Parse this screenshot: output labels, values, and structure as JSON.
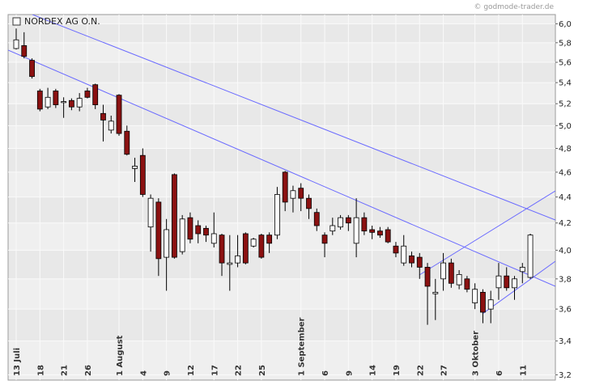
{
  "chart_data": {
    "type": "candlestick",
    "title": "NORDEX AG O.N.",
    "source": "© godmode-trader.de",
    "categories": [
      "13 Juli",
      null,
      null,
      "18",
      null,
      null,
      "21",
      null,
      null,
      "26",
      null,
      null,
      null,
      "1 August",
      null,
      null,
      "4",
      null,
      null,
      "9",
      null,
      null,
      "12",
      null,
      null,
      "17",
      null,
      null,
      "22",
      null,
      null,
      "25",
      null,
      null,
      null,
      null,
      "1 September",
      null,
      null,
      "6",
      null,
      null,
      "9",
      null,
      null,
      "14",
      null,
      null,
      "19",
      null,
      null,
      "22",
      null,
      null,
      "27",
      null,
      null,
      null,
      "3 Oktober",
      null,
      null,
      "6",
      null,
      null,
      "11",
      null
    ],
    "open": [
      5.74,
      5.77,
      5.62,
      5.32,
      5.17,
      5.32,
      5.21,
      5.23,
      5.17,
      5.32,
      5.38,
      5.11,
      4.96,
      5.28,
      4.95,
      4.63,
      4.74,
      4.17,
      4.36,
      3.95,
      4.58,
      3.99,
      4.24,
      4.18,
      4.16,
      4.05,
      4.11,
      3.9,
      3.91,
      4.12,
      4.03,
      4.11,
      4.11,
      4.11,
      4.6,
      4.39,
      4.47,
      4.39,
      4.28,
      4.11,
      4.14,
      4.17,
      4.24,
      4.05,
      4.24,
      4.15,
      4.14,
      4.15,
      4.03,
      3.91,
      3.96,
      3.95,
      3.88,
      3.7,
      3.8,
      3.91,
      3.76,
      3.8,
      3.64,
      3.71,
      3.6,
      3.74,
      3.82,
      3.74,
      3.85,
      3.81
    ],
    "high": [
      5.95,
      5.91,
      5.64,
      5.34,
      5.35,
      5.34,
      5.26,
      5.25,
      5.3,
      5.35,
      5.39,
      5.19,
      5.09,
      5.29,
      5.0,
      4.72,
      4.8,
      4.42,
      4.39,
      4.23,
      4.59,
      4.26,
      4.28,
      4.22,
      4.18,
      4.28,
      4.12,
      4.11,
      4.11,
      4.13,
      4.09,
      4.12,
      4.13,
      4.48,
      4.61,
      4.49,
      4.51,
      4.42,
      4.31,
      4.13,
      4.24,
      4.26,
      4.26,
      4.39,
      4.28,
      4.18,
      4.17,
      4.17,
      4.06,
      4.11,
      3.99,
      3.98,
      3.91,
      3.8,
      3.98,
      3.94,
      3.86,
      3.82,
      3.77,
      3.73,
      3.72,
      3.91,
      3.88,
      3.82,
      3.91,
      4.12
    ],
    "low": [
      5.73,
      5.64,
      5.44,
      5.13,
      5.15,
      5.16,
      5.07,
      5.14,
      5.13,
      5.25,
      5.15,
      4.86,
      4.93,
      4.91,
      4.74,
      4.52,
      4.4,
      3.99,
      3.82,
      3.72,
      3.94,
      3.97,
      4.05,
      4.05,
      4.06,
      4.02,
      3.82,
      3.72,
      3.88,
      3.9,
      4.02,
      3.94,
      3.98,
      4.08,
      4.29,
      4.28,
      4.29,
      4.23,
      4.14,
      3.95,
      4.11,
      4.15,
      4.14,
      3.95,
      4.11,
      4.08,
      4.09,
      4.05,
      3.95,
      3.89,
      3.88,
      3.8,
      3.5,
      3.53,
      3.72,
      3.74,
      3.73,
      3.71,
      3.6,
      3.51,
      3.51,
      3.66,
      3.72,
      3.66,
      3.77,
      3.8
    ],
    "close": [
      5.83,
      5.66,
      5.46,
      5.15,
      5.26,
      5.19,
      5.22,
      5.17,
      5.25,
      5.26,
      5.19,
      5.05,
      5.04,
      4.93,
      4.75,
      4.65,
      4.42,
      4.39,
      3.94,
      4.15,
      3.95,
      4.23,
      4.08,
      4.12,
      4.11,
      4.12,
      3.91,
      3.91,
      3.96,
      3.91,
      4.08,
      3.95,
      4.05,
      4.42,
      4.36,
      4.45,
      4.39,
      4.31,
      4.18,
      4.05,
      4.18,
      4.24,
      4.2,
      4.24,
      4.14,
      4.13,
      4.11,
      4.06,
      3.98,
      4.03,
      3.91,
      3.88,
      3.75,
      3.71,
      3.91,
      3.77,
      3.83,
      3.73,
      3.73,
      3.58,
      3.66,
      3.82,
      3.74,
      3.8,
      3.88,
      4.11
    ],
    "up_color": "#ffffff",
    "down_color": "#8b1111",
    "wick_color": "#000000",
    "ylim": [
      3.17,
      6.1
    ],
    "log_scale": true,
    "grid": true,
    "yticks": [
      {
        "value": 3.2,
        "label": "3,2"
      },
      {
        "value": 3.4,
        "label": "3,4"
      },
      {
        "value": 3.6,
        "label": "3,6"
      },
      {
        "value": 3.8,
        "label": "3,8"
      },
      {
        "value": 4.0,
        "label": "4,0"
      },
      {
        "value": 4.2,
        "label": "4,2"
      },
      {
        "value": 4.4,
        "label": "4,4"
      },
      {
        "value": 4.6,
        "label": "4,6"
      },
      {
        "value": 4.8,
        "label": "4,8"
      },
      {
        "value": 5.0,
        "label": "5,0"
      },
      {
        "value": 5.2,
        "label": "5,2"
      },
      {
        "value": 5.4,
        "label": "5,4"
      },
      {
        "value": 5.6,
        "label": "5,6"
      },
      {
        "value": 5.8,
        "label": "5,8"
      },
      {
        "value": 6.0,
        "label": "6,0"
      }
    ]
  }
}
